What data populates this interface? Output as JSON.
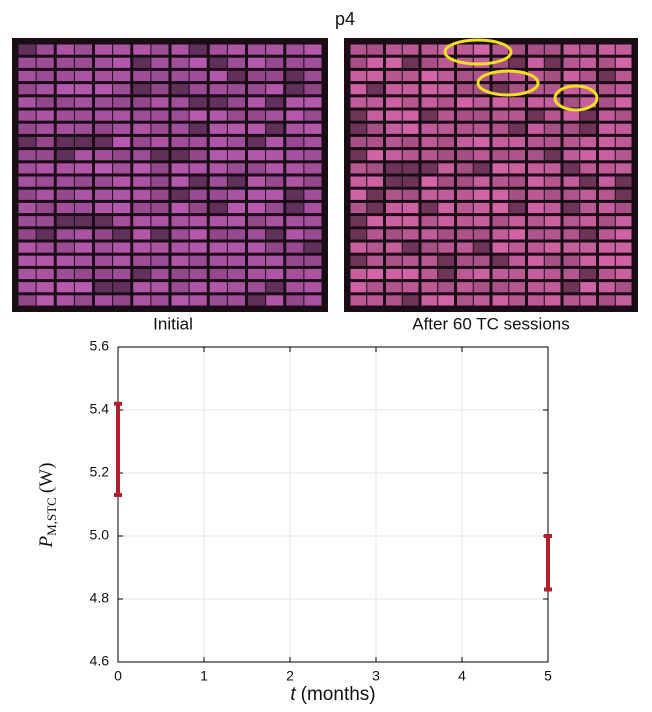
{
  "chart_data": {
    "type": "errorbar",
    "title": "p4",
    "panels": [
      {
        "label": "Initial"
      },
      {
        "label": "After 60 TC sessions"
      }
    ],
    "x_label_var": "t",
    "x_label_unit": "(months)",
    "y_label_var": "P",
    "y_label_sub": "M,STC",
    "y_label_unit": "(W)",
    "series": [
      {
        "color": "#b3202b",
        "x": [
          0,
          5
        ],
        "values": [
          5.275,
          4.915
        ],
        "errors": [
          0.145,
          0.085
        ]
      }
    ],
    "xlim": [
      0,
      5
    ],
    "xticks": [
      0,
      1,
      2,
      3,
      4,
      5
    ],
    "ylim": [
      4.6,
      5.6
    ],
    "yticks": [
      4.6,
      4.8,
      {
        "value": 5,
        "label": "5.0"
      },
      5.2,
      5.4,
      5.6
    ],
    "grid": true
  }
}
